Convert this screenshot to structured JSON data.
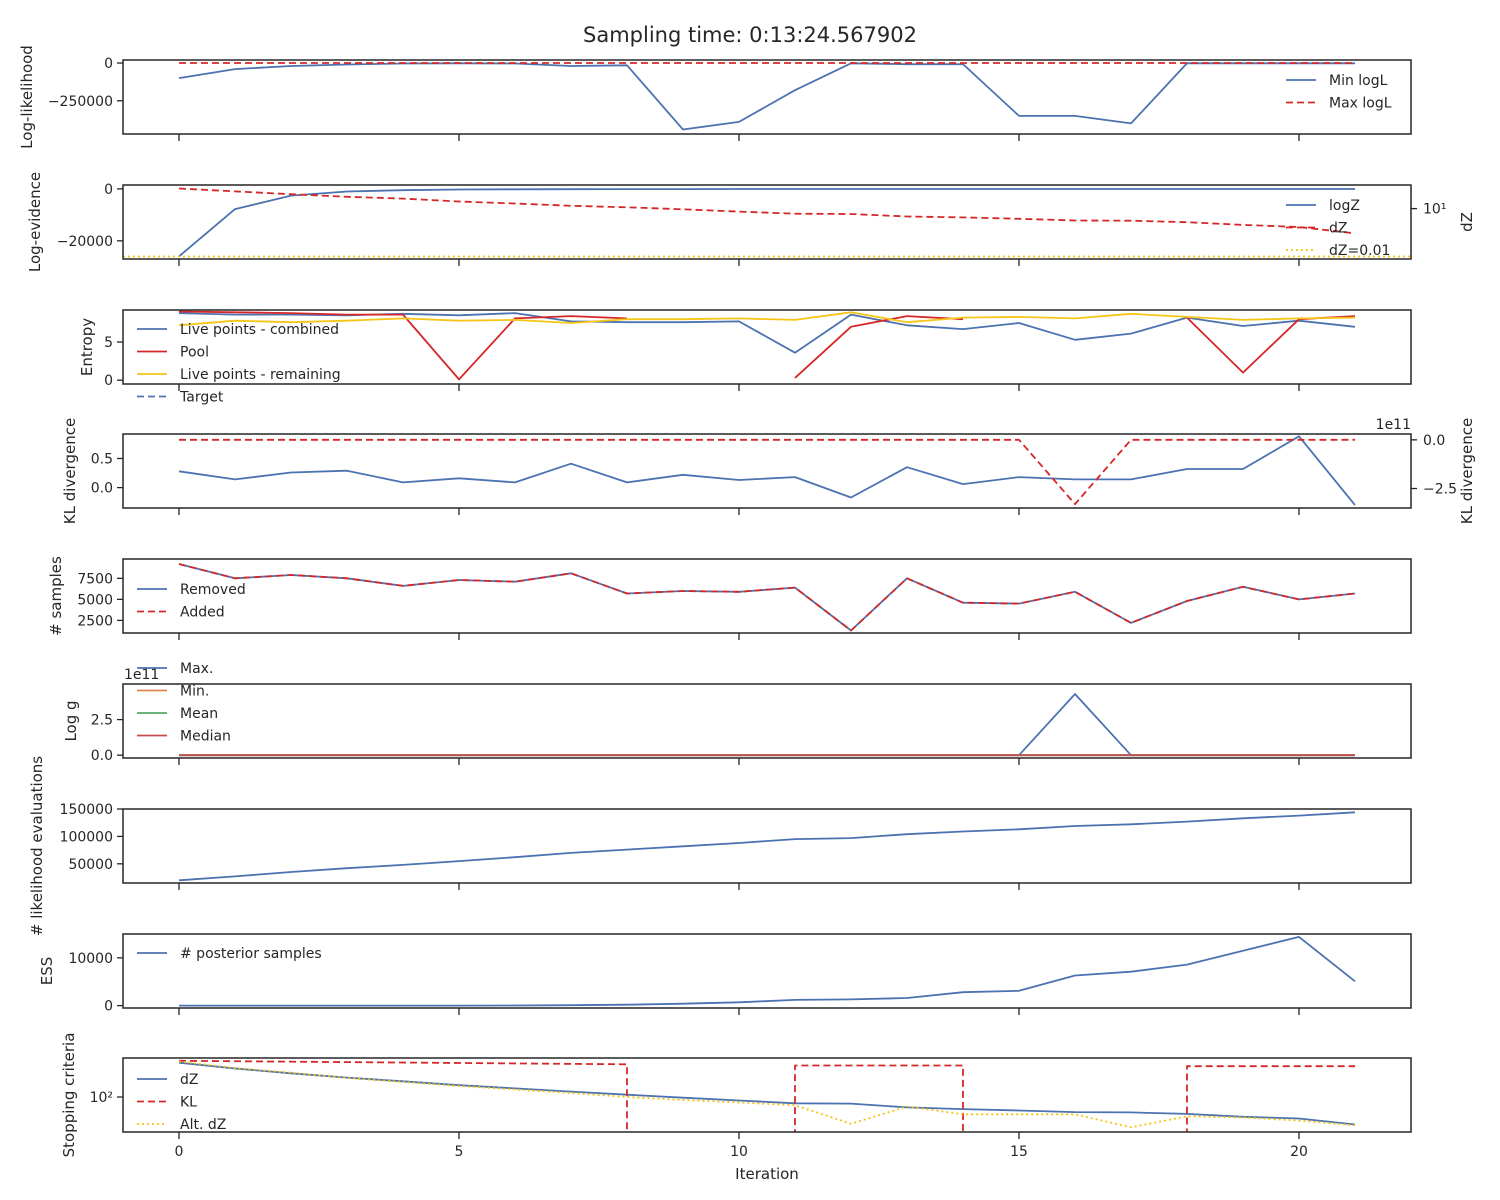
{
  "title": "Sampling time: 0:13:24.567902",
  "xlabel": "Iteration",
  "x_ticks": [
    0,
    5,
    10,
    15,
    20
  ],
  "x_range": [
    -1,
    22
  ],
  "colors": {
    "blue": "#4c72b0",
    "red": "#d62728",
    "orange": "#dd8452",
    "green": "#55a868",
    "crimson": "#c44e52",
    "gold": "#f5c518",
    "gold_dotted": "#f2c40f",
    "text": "#262626"
  },
  "chart_data": [
    {
      "type": "line",
      "ylabel": "Log-likelihood",
      "ylim": [
        -470000,
        20000
      ],
      "y_ticks": [
        {
          "value": 0,
          "label": "0"
        },
        {
          "value": -250000,
          "label": "−250000"
        }
      ],
      "legend": "right",
      "series": [
        {
          "name": "Min logL",
          "color": "blue",
          "style": "solid",
          "x": [
            0,
            1,
            2,
            3,
            4,
            5,
            6,
            7,
            8,
            9,
            10,
            11,
            12,
            13,
            14,
            15,
            16,
            17,
            18,
            19,
            20,
            21
          ],
          "values": [
            -100000,
            -40000,
            -20000,
            -10000,
            -3000,
            -2000,
            -3000,
            -20000,
            -15000,
            -440000,
            -390000,
            -180000,
            -2000,
            -8000,
            -7000,
            -350000,
            -350000,
            -400000,
            -2000,
            -2000,
            -2000,
            -2000
          ]
        },
        {
          "name": "Max logL",
          "color": "red",
          "style": "dashed",
          "x": [
            0,
            21
          ],
          "values": [
            0,
            0
          ]
        }
      ]
    },
    {
      "type": "line",
      "ylabel": "Log-evidence",
      "ylim": [
        -27000,
        1500
      ],
      "y_ticks": [
        {
          "value": 0,
          "label": "0"
        },
        {
          "value": -20000,
          "label": "−20000"
        }
      ],
      "y2label": "dZ",
      "y2_scale": "log",
      "y2lim": [
        0.007,
        300
      ],
      "y2_ticks": [
        {
          "value": 10,
          "label": "10¹"
        }
      ],
      "legend": "right",
      "series": [
        {
          "name": "logZ",
          "color": "blue",
          "style": "solid",
          "axis": "left",
          "x": [
            0,
            1,
            2,
            3,
            4,
            5,
            6,
            7,
            8,
            9,
            10,
            11,
            12,
            13,
            14,
            15,
            16,
            17,
            18,
            19,
            20,
            21
          ],
          "values": [
            -26000,
            -7800,
            -2600,
            -1000,
            -500,
            -250,
            -150,
            -100,
            -80,
            -60,
            -50,
            -45,
            -40,
            -38,
            -36,
            -35,
            -34,
            -33,
            -32,
            -31,
            -30,
            -30
          ]
        },
        {
          "name": "dZ",
          "color": "red",
          "style": "dashed",
          "axis": "right",
          "x": [
            0,
            1,
            2,
            3,
            4,
            5,
            6,
            7,
            8,
            9,
            10,
            11,
            12,
            13,
            14,
            15,
            16,
            17,
            18,
            19,
            20,
            21
          ],
          "values": [
            180,
            120,
            80,
            55,
            42,
            28,
            21,
            15,
            12,
            9,
            6.5,
            4.8,
            4.6,
            3.2,
            2.8,
            2.3,
            1.8,
            1.75,
            1.4,
            0.95,
            0.7,
            0.28
          ]
        },
        {
          "name": "dZ=0.01",
          "color": "gold_dotted",
          "style": "dotted",
          "axis": "right",
          "x": [
            -1,
            22
          ],
          "values": [
            0.01,
            0.01
          ]
        }
      ]
    },
    {
      "type": "line",
      "ylabel": "Entropy",
      "ylim": [
        -0.5,
        9.2
      ],
      "y_ticks": [
        {
          "value": 0,
          "label": "0"
        },
        {
          "value": 5,
          "label": "5"
        }
      ],
      "legend": "left",
      "series": [
        {
          "name": "Live points - combined",
          "color": "blue",
          "style": "solid",
          "x": [
            0,
            1,
            2,
            3,
            4,
            5,
            6,
            7,
            8,
            9,
            10,
            11,
            12,
            13,
            14,
            15,
            16,
            17,
            18,
            19,
            20,
            21
          ],
          "values": [
            8.8,
            8.6,
            8.6,
            8.5,
            8.7,
            8.5,
            8.8,
            7.7,
            7.6,
            7.6,
            7.7,
            3.6,
            8.6,
            7.2,
            6.7,
            7.5,
            5.3,
            6.1,
            8.2,
            7.1,
            7.8,
            7
          ]
        },
        {
          "name": "Pool",
          "color": "red",
          "style": "solid",
          "x": [
            0,
            1,
            2,
            3,
            4,
            5,
            6,
            7,
            8,
            null,
            11,
            12,
            13,
            14,
            null,
            18,
            19,
            20,
            21
          ],
          "values": [
            9,
            8.9,
            8.8,
            8.6,
            8.6,
            0.1,
            8.1,
            8.4,
            8.1,
            null,
            0.3,
            7,
            8.4,
            8,
            null,
            8.2,
            1,
            8,
            8.4
          ]
        },
        {
          "name": "Live points - remaining",
          "color": "gold",
          "style": "solid",
          "x": [
            0,
            1,
            2,
            3,
            4,
            5,
            6,
            7,
            8,
            9,
            10,
            11,
            12,
            13,
            14,
            15,
            16,
            17,
            18,
            19,
            20,
            21
          ],
          "values": [
            7.2,
            7.8,
            7.6,
            7.8,
            8.1,
            7.8,
            7.9,
            7.5,
            8,
            8,
            8.1,
            7.9,
            8.9,
            7.6,
            8.2,
            8.3,
            8.1,
            8.7,
            8.3,
            7.9,
            8.1,
            8.2
          ]
        },
        {
          "name": "Target",
          "color": "blue",
          "style": "dashed",
          "x": [],
          "values": []
        }
      ]
    },
    {
      "type": "line",
      "ylabel": "KL divergence",
      "ylim": [
        -0.35,
        0.92
      ],
      "y_ticks": [
        {
          "value": 0.5,
          "label": "0.5"
        },
        {
          "value": 0,
          "label": "0.0"
        }
      ],
      "y2label": "KL divergence",
      "y2lim": [
        -3.5,
        0.3
      ],
      "y2_ticks": [
        {
          "value": 0,
          "label": "0.0"
        },
        {
          "value": -2.5,
          "label": "−2.5"
        }
      ],
      "y2_offset": "1e11",
      "series": [
        {
          "name": "",
          "color": "blue",
          "style": "solid",
          "axis": "left",
          "x": [
            0,
            1,
            2,
            3,
            4,
            5,
            6,
            7,
            8,
            9,
            10,
            11,
            12,
            13,
            14,
            15,
            16,
            17,
            18,
            19,
            20,
            21
          ],
          "values": [
            0.28,
            0.14,
            0.26,
            0.29,
            0.09,
            0.16,
            0.09,
            0.41,
            0.09,
            0.22,
            0.13,
            0.18,
            -0.17,
            0.35,
            0.06,
            0.18,
            0.14,
            0.14,
            0.32,
            0.32,
            0.88,
            -0.3
          ]
        },
        {
          "name": "",
          "color": "red",
          "style": "dashed",
          "axis": "right",
          "x": [
            0,
            1,
            2,
            3,
            4,
            5,
            6,
            7,
            8,
            9,
            10,
            11,
            12,
            13,
            14,
            15,
            16,
            17,
            18,
            19,
            20,
            21
          ],
          "values": [
            0,
            0,
            0,
            0,
            0,
            0,
            0,
            0,
            0,
            0,
            0,
            0,
            0,
            0,
            0,
            0,
            -3.3,
            0,
            0,
            0,
            0,
            0
          ]
        }
      ]
    },
    {
      "type": "line",
      "ylabel": "# samples",
      "ylim": [
        1000,
        9800
      ],
      "y_ticks": [
        {
          "value": 7500,
          "label": "7500"
        },
        {
          "value": 5000,
          "label": "5000"
        },
        {
          "value": 2500,
          "label": "2500"
        }
      ],
      "legend": "left",
      "series": [
        {
          "name": "Removed",
          "color": "blue",
          "style": "solid",
          "x": [
            0,
            1,
            2,
            3,
            4,
            5,
            6,
            7,
            8,
            9,
            10,
            11,
            12,
            13,
            14,
            15,
            16,
            17,
            18,
            19,
            20,
            21
          ],
          "values": [
            9200,
            7500,
            7900,
            7500,
            6600,
            7300,
            7100,
            8100,
            5700,
            6000,
            5900,
            6400,
            1300,
            7500,
            4600,
            4500,
            5900,
            2200,
            4800,
            6500,
            5000,
            5700
          ]
        },
        {
          "name": "Added",
          "color": "red",
          "style": "dashed",
          "x": [
            0,
            1,
            2,
            3,
            4,
            5,
            6,
            7,
            8,
            9,
            10,
            11,
            12,
            13,
            14,
            15,
            16,
            17,
            18,
            19,
            20,
            21
          ],
          "values": [
            9200,
            7500,
            7900,
            7500,
            6600,
            7300,
            7100,
            8100,
            5700,
            6000,
            5900,
            6400,
            1300,
            7500,
            4600,
            4500,
            5900,
            2200,
            4800,
            6500,
            5000,
            5700
          ]
        }
      ]
    },
    {
      "type": "line",
      "ylabel": "Log g",
      "ylim": [
        -0.2,
        5
      ],
      "y_ticks": [
        {
          "value": 2.5,
          "label": "2.5"
        },
        {
          "value": 0,
          "label": "0.0"
        }
      ],
      "y_offset": "1e11",
      "legend": "upper-left",
      "series": [
        {
          "name": "Max.",
          "color": "blue",
          "style": "solid",
          "x": [
            0,
            1,
            2,
            3,
            4,
            5,
            6,
            7,
            8,
            9,
            10,
            11,
            12,
            13,
            14,
            15,
            16,
            17,
            18,
            19,
            20,
            21
          ],
          "values": [
            0,
            0,
            0,
            0,
            0,
            0,
            0,
            0,
            0,
            0,
            0,
            0,
            0,
            0,
            0,
            0,
            4.3,
            0,
            0,
            0,
            0,
            0
          ]
        },
        {
          "name": "Min.",
          "color": "orange",
          "style": "solid",
          "x": [
            0,
            21
          ],
          "values": [
            0,
            0
          ]
        },
        {
          "name": "Mean",
          "color": "green",
          "style": "solid",
          "x": [
            0,
            21
          ],
          "values": [
            0,
            0
          ]
        },
        {
          "name": "Median",
          "color": "crimson",
          "style": "solid",
          "x": [
            0,
            21
          ],
          "values": [
            0,
            0
          ]
        }
      ]
    },
    {
      "type": "line",
      "ylabel": "# likelihood evaluations",
      "ylim": [
        15000,
        150000
      ],
      "y_ticks": [
        {
          "value": 150000,
          "label": "150000"
        },
        {
          "value": 100000,
          "label": "100000"
        },
        {
          "value": 50000,
          "label": "50000"
        }
      ],
      "series": [
        {
          "name": "",
          "color": "blue",
          "style": "solid",
          "x": [
            0,
            1,
            2,
            3,
            4,
            5,
            6,
            7,
            8,
            9,
            10,
            11,
            12,
            13,
            14,
            15,
            16,
            17,
            18,
            19,
            20,
            21
          ],
          "values": [
            20000,
            27000,
            35000,
            42000,
            48000,
            55000,
            62000,
            70000,
            76000,
            82000,
            88000,
            95000,
            97000,
            104000,
            109000,
            113000,
            119000,
            122000,
            127000,
            133000,
            138000,
            144000
          ]
        }
      ]
    },
    {
      "type": "line",
      "ylabel": "ESS",
      "ylim": [
        -500,
        15000
      ],
      "y_ticks": [
        {
          "value": 10000,
          "label": "10000"
        },
        {
          "value": 0,
          "label": "0"
        }
      ],
      "legend": "upper-left",
      "series": [
        {
          "name": "# posterior samples",
          "color": "blue",
          "style": "solid",
          "x": [
            0,
            1,
            2,
            3,
            4,
            5,
            6,
            7,
            8,
            9,
            10,
            11,
            12,
            13,
            14,
            15,
            16,
            17,
            18,
            19,
            20,
            21
          ],
          "values": [
            0,
            0,
            0,
            0,
            0,
            10,
            30,
            80,
            200,
            400,
            700,
            1200,
            1300,
            1600,
            2800,
            3100,
            6300,
            7100,
            8600,
            11500,
            14400,
            5100
          ]
        }
      ]
    },
    {
      "type": "line",
      "ylabel": "Stopping criteria",
      "y_scale": "log",
      "ylim": [
        0.6,
        30000
      ],
      "y_ticks": [
        {
          "value": 100,
          "label": "10²"
        }
      ],
      "legend": "lower-left",
      "series": [
        {
          "name": "dZ",
          "color": "blue",
          "style": "solid",
          "x": [
            0,
            1,
            2,
            3,
            4,
            5,
            6,
            7,
            8,
            9,
            10,
            11,
            12,
            13,
            14,
            15,
            16,
            17,
            18,
            19,
            20,
            21
          ],
          "values": [
            15000,
            6500,
            3200,
            1700,
            1000,
            560,
            350,
            220,
            140,
            90,
            60,
            40,
            38,
            22,
            17,
            14,
            11,
            10.5,
            8.5,
            5.5,
            4.3,
            1.8
          ]
        },
        {
          "name": "KL",
          "color": "red",
          "style": "dashed",
          "x": [
            0,
            8,
            8,
            11,
            11,
            14,
            14,
            18,
            18,
            21
          ],
          "values": [
            20000,
            12000,
            0.5,
            0.5,
            10000,
            10000,
            0.5,
            0.5,
            9000,
            9000
          ]
        },
        {
          "name": "Alt. dZ",
          "color": "gold_dotted",
          "style": "dotted",
          "x": [
            0,
            1,
            2,
            3,
            4,
            5,
            6,
            7,
            8,
            9,
            10,
            11,
            12,
            13,
            14,
            15,
            16,
            17,
            18,
            19,
            20,
            21
          ],
          "values": [
            18000,
            7000,
            3500,
            1600,
            900,
            500,
            300,
            180,
            100,
            65,
            45,
            30,
            2,
            25,
            8,
            8,
            8,
            1.2,
            6,
            5,
            3.2,
            1.6
          ]
        }
      ]
    }
  ]
}
